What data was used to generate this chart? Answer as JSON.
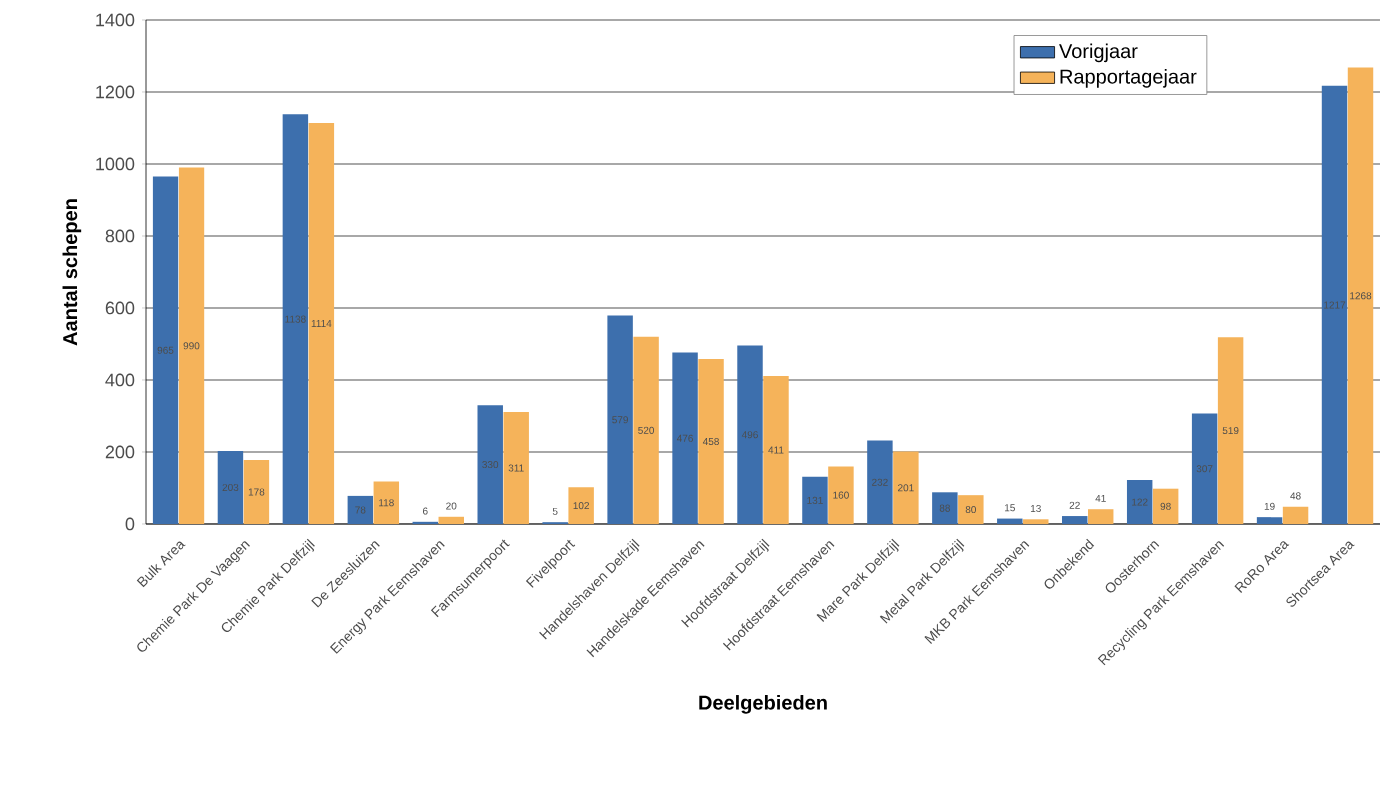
{
  "chart_data": {
    "type": "bar",
    "xlabel": "Deelgebieden",
    "ylabel": "Aantal schepen",
    "categories": [
      "Bulk Area",
      "Chemie Park De Vaagen",
      "Chemie Park Delfzijl",
      "De Zeesluizen",
      "Energy Park Eemshaven",
      "Farmsumerpoort",
      "Fivelpoort",
      "Handelshaven Delfzijl",
      "Handelskade Eemshaven",
      "Hoofdstraat Delfzijl",
      "Hoofdstraat Eemshaven",
      "Mare Park Delfzijl",
      "Metal Park Delfzijl",
      "MKB Park Eemshaven",
      "Onbekend",
      "Oosterhorn",
      "Recycling Park Eemshaven",
      "RoRo Area",
      "Shortsea Area"
    ],
    "series": [
      {
        "name": "Vorigjaar",
        "color": "#3d6fad",
        "values": [
          965,
          203,
          1138,
          78,
          6,
          330,
          5,
          579,
          476,
          496,
          131,
          232,
          88,
          15,
          22,
          122,
          307,
          19,
          1217
        ]
      },
      {
        "name": "Rapportagejaar",
        "color": "#f5b35a",
        "values": [
          990,
          178,
          1114,
          118,
          20,
          311,
          102,
          520,
          458,
          411,
          160,
          201,
          80,
          13,
          41,
          98,
          519,
          48,
          1268
        ]
      }
    ],
    "ylim": [
      0,
      1400
    ],
    "yticks": [
      0,
      200,
      400,
      600,
      800,
      1000,
      1200,
      1400
    ],
    "grid": "y",
    "legend": "top right",
    "data_labels": true
  }
}
